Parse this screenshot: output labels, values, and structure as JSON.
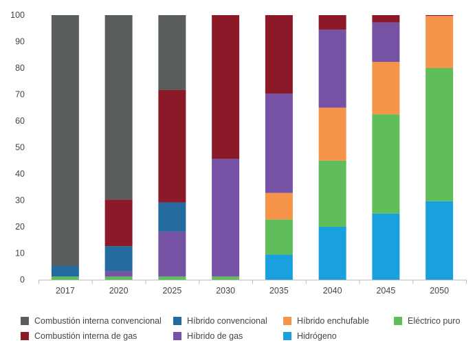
{
  "colors": {
    "axis": "#bfbfbf",
    "text": "#444444"
  },
  "chart_data": {
    "type": "bar",
    "stacked": true,
    "categories": [
      "2017",
      "2020",
      "2025",
      "2030",
      "2035",
      "2040",
      "2045",
      "2050"
    ],
    "ylim": [
      0,
      100
    ],
    "yticks": [
      0,
      10,
      20,
      30,
      40,
      50,
      60,
      70,
      80,
      90,
      100
    ],
    "grid": false,
    "legend_position": "bottom",
    "series": [
      {
        "name": "Hidrógeno",
        "color": "#1aa1dd",
        "values": [
          0,
          0,
          0,
          0,
          9.5,
          20,
          25,
          29.7
        ]
      },
      {
        "name": "Eléctrico puro",
        "color": "#5fbe5a",
        "values": [
          1.2,
          1.2,
          1.2,
          1.2,
          13.3,
          25,
          37.5,
          50.3
        ]
      },
      {
        "name": "Híbrido enchufable",
        "color": "#f6944a",
        "values": [
          0,
          0,
          0,
          0,
          10,
          20,
          19.8,
          19.7
        ]
      },
      {
        "name": "Híbrido de gas",
        "color": "#7552a4",
        "values": [
          0,
          2,
          17,
          44.5,
          37.5,
          29.5,
          14.9,
          0
        ]
      },
      {
        "name": "Híbrido convencional",
        "color": "#236b9e",
        "values": [
          4,
          9.5,
          11,
          0,
          0,
          0,
          0,
          0
        ]
      },
      {
        "name": "Combustión interna de gas",
        "color": "#8c1928",
        "values": [
          0,
          17.6,
          42.5,
          54.3,
          29.7,
          5.5,
          2.8,
          0.3
        ]
      },
      {
        "name": "Combustión interna convencional",
        "color": "#5a5d5e",
        "values": [
          94.8,
          69.7,
          28.3,
          0,
          0,
          0,
          0,
          0
        ]
      }
    ]
  },
  "legend": {
    "row1": [
      {
        "label": "Combustión interna convencional",
        "color": "#5a5d5e"
      },
      {
        "label": "Híbrido convencional",
        "color": "#236b9e"
      },
      {
        "label": "Híbrido enchufable",
        "color": "#f6944a"
      },
      {
        "label": "Eléctrico puro",
        "color": "#5fbe5a"
      }
    ],
    "row2": [
      {
        "label": "Combustión interna de gas",
        "color": "#8c1928"
      },
      {
        "label": "Híbrido de gas",
        "color": "#7552a4"
      },
      {
        "label": "Hidrógeno",
        "color": "#1aa1dd"
      }
    ]
  }
}
